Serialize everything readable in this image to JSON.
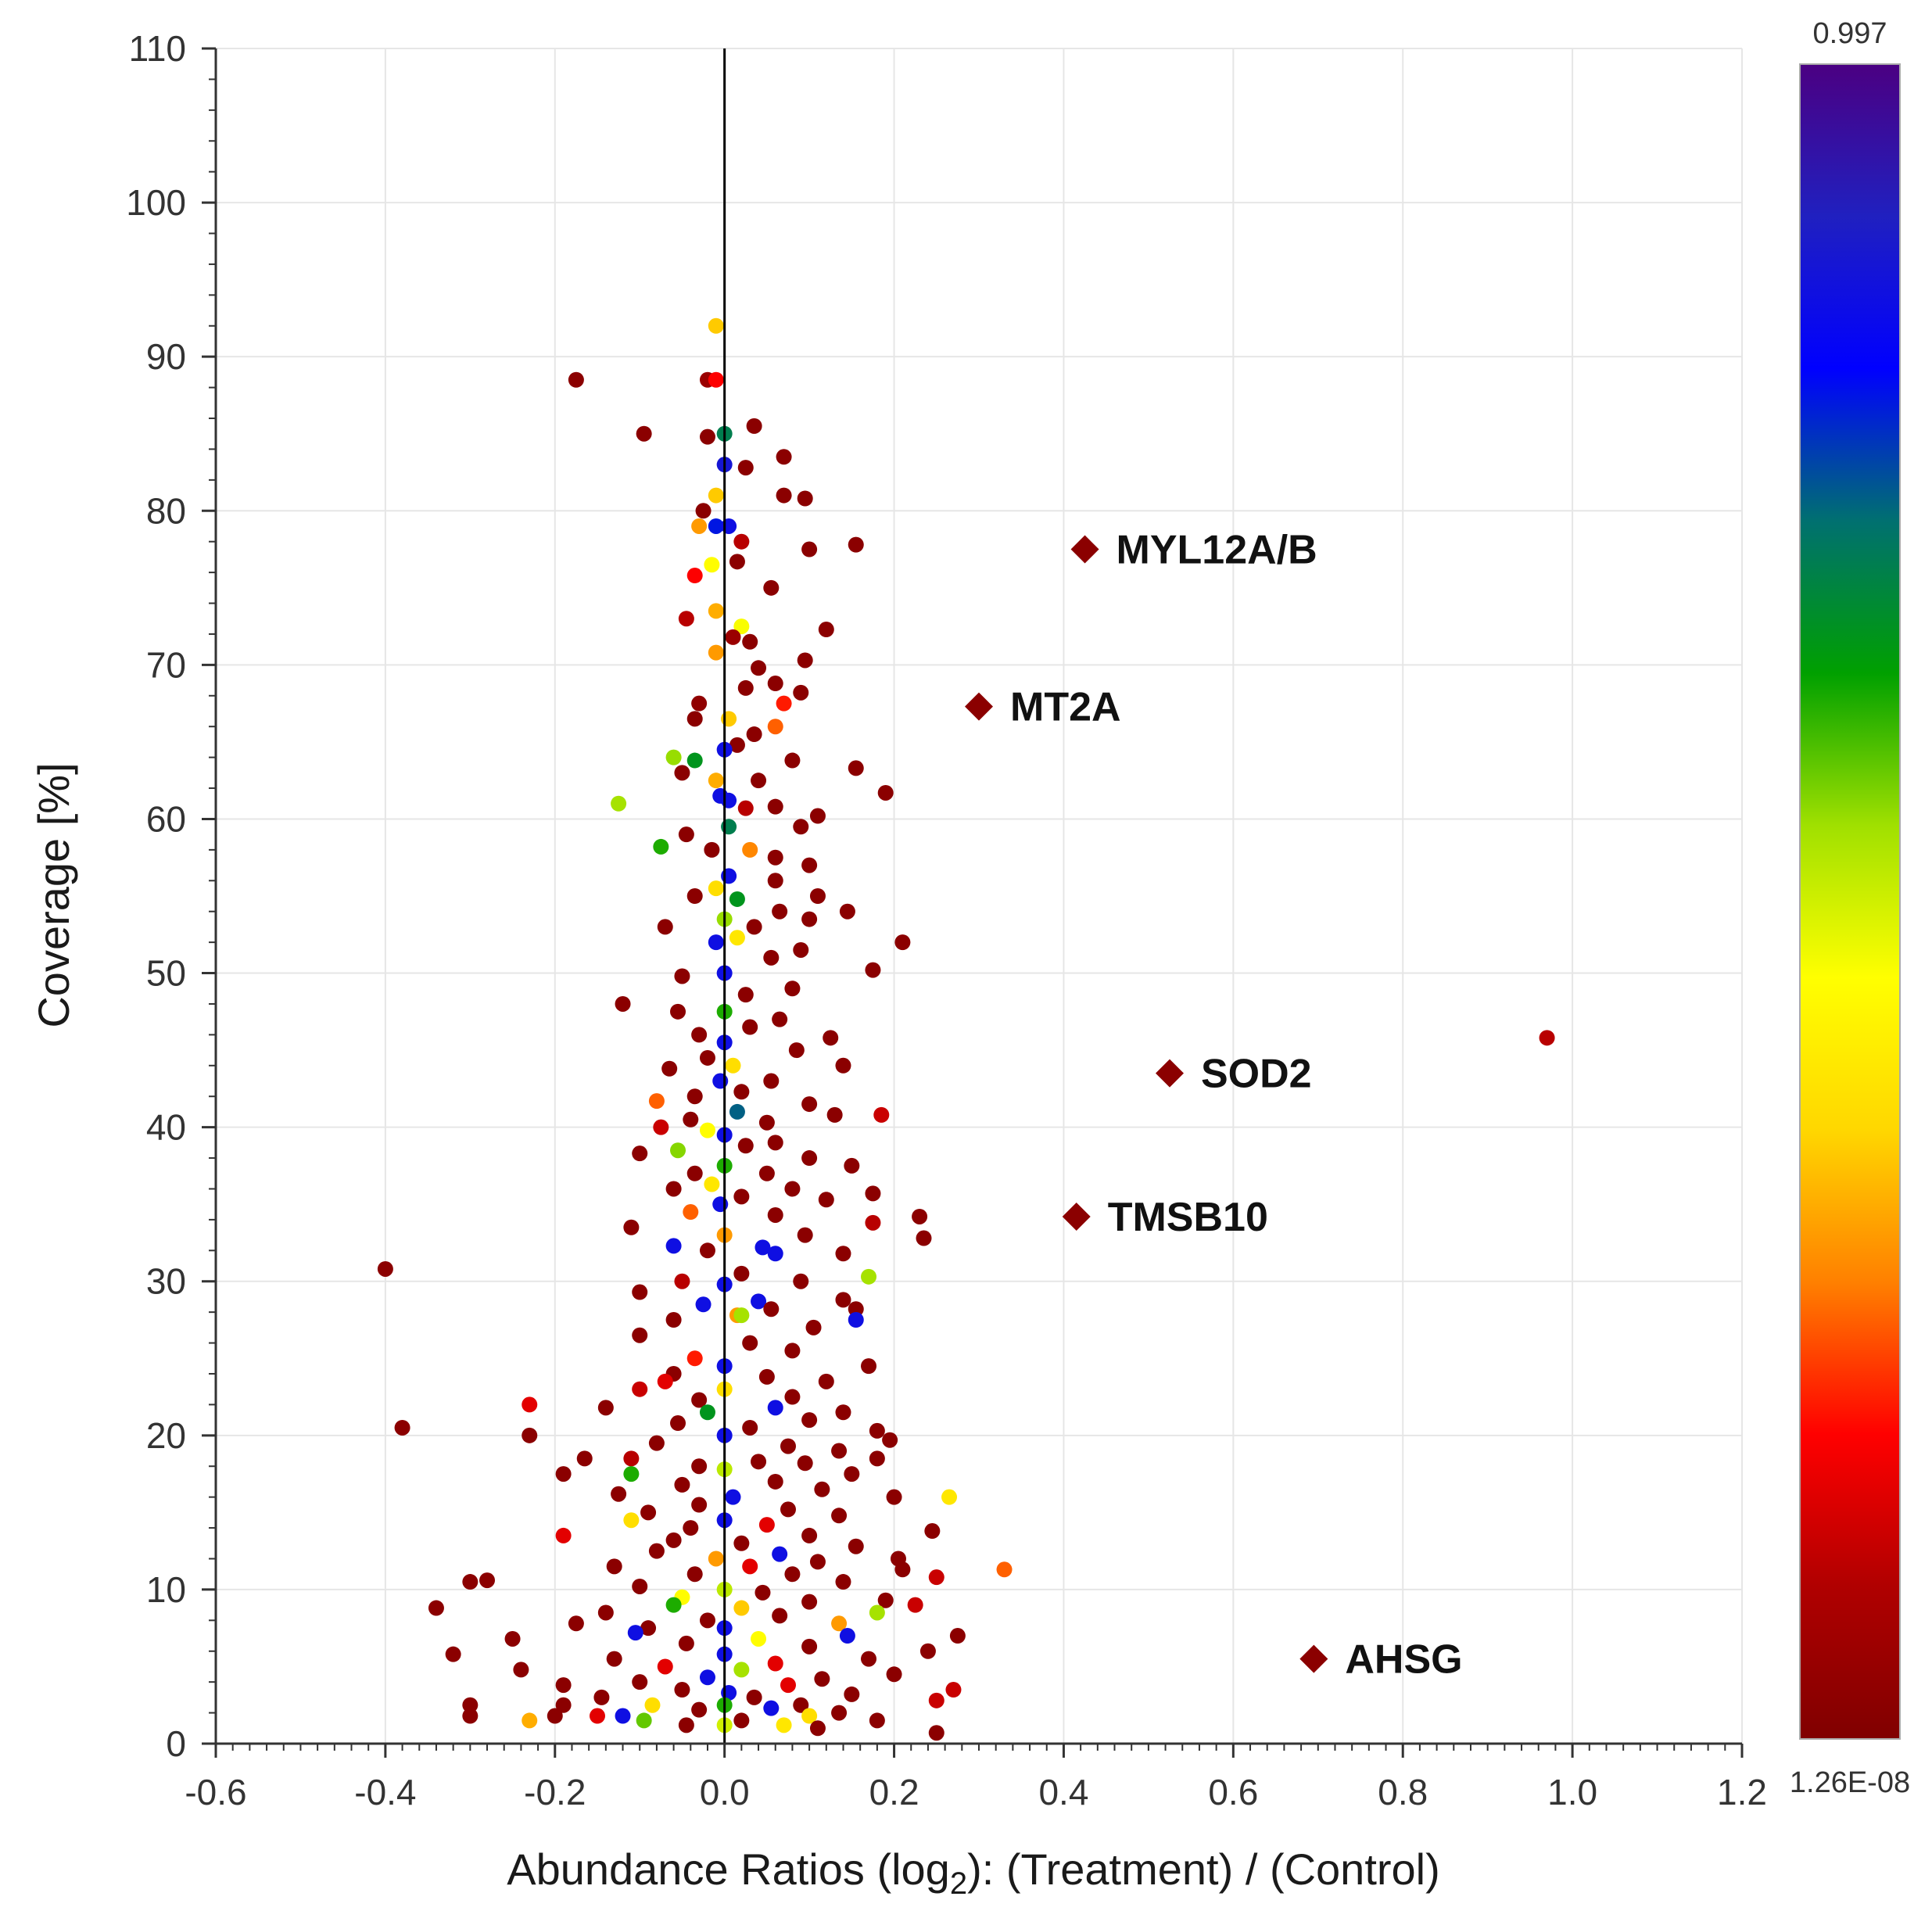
{
  "chart_data": {
    "type": "scatter",
    "title": "",
    "xlabel_main": "Abundance Ratios (log",
    "xlabel_sub": "2",
    "xlabel_tail": "): (Treatment) / (Control)",
    "ylabel": "Coverage [%]",
    "xlim": [
      -0.6,
      1.2
    ],
    "ylim": [
      0,
      110
    ],
    "xticks": [
      "-0.6",
      "-0.4",
      "-0.2",
      "0.0",
      "0.2",
      "0.4",
      "0.6",
      "0.8",
      "1.0",
      "1.2"
    ],
    "yticks": [
      "0",
      "10",
      "20",
      "30",
      "40",
      "50",
      "60",
      "70",
      "80",
      "90",
      "100",
      "110"
    ],
    "grid": true,
    "reference_line_x": 0.0,
    "colorbar": {
      "max_label": "0.997",
      "min_label": "1.26E-08",
      "colors": [
        "#800000",
        "#b00000",
        "#ff0000",
        "#ff8000",
        "#ffd700",
        "#ffff00",
        "#a0e000",
        "#00a000",
        "#007070",
        "#0000ff",
        "#2020c0",
        "#4b0082"
      ]
    },
    "highlighted": [
      {
        "label": "MYL12A/B",
        "x": 0.425,
        "y": 77.5
      },
      {
        "label": "MT2A",
        "x": 0.3,
        "y": 67.3
      },
      {
        "label": "SOD2",
        "x": 0.525,
        "y": 43.5
      },
      {
        "label": "TMSB10",
        "x": 0.415,
        "y": 34.2
      },
      {
        "label": "AHSG",
        "x": 0.695,
        "y": 5.5
      }
    ],
    "points": [
      [
        -0.01,
        92.0,
        0.35
      ],
      [
        -0.175,
        88.5,
        0.02
      ],
      [
        -0.02,
        88.5,
        0.05
      ],
      [
        -0.01,
        88.5,
        0.18
      ],
      [
        -0.095,
        85.0,
        0.02
      ],
      [
        -0.02,
        84.8,
        0.02
      ],
      [
        0.0,
        85.0,
        0.7
      ],
      [
        0.035,
        85.5,
        0.02
      ],
      [
        0.0,
        83.0,
        0.88
      ],
      [
        0.025,
        82.8,
        0.02
      ],
      [
        0.07,
        83.5,
        0.02
      ],
      [
        -0.01,
        81.0,
        0.35
      ],
      [
        0.07,
        81.0,
        0.02
      ],
      [
        0.095,
        80.8,
        0.02
      ],
      [
        -0.025,
        80.0,
        0.02
      ],
      [
        -0.01,
        79.0,
        0.8
      ],
      [
        0.005,
        79.0,
        0.86
      ],
      [
        -0.03,
        79.0,
        0.3
      ],
      [
        0.02,
        78.0,
        0.1
      ],
      [
        0.155,
        77.8,
        0.02
      ],
      [
        0.1,
        77.5,
        0.02
      ],
      [
        -0.015,
        76.5,
        0.45
      ],
      [
        0.015,
        76.7,
        0.02
      ],
      [
        -0.035,
        75.8,
        0.18
      ],
      [
        0.055,
        75.0,
        0.02
      ],
      [
        -0.01,
        73.5,
        0.32
      ],
      [
        0.02,
        72.5,
        0.46
      ],
      [
        -0.045,
        73.0,
        0.1
      ],
      [
        0.12,
        72.3,
        0.02
      ],
      [
        0.01,
        71.8,
        0.05
      ],
      [
        0.03,
        71.5,
        0.02
      ],
      [
        0.095,
        70.3,
        0.02
      ],
      [
        -0.01,
        70.8,
        0.3
      ],
      [
        0.04,
        69.8,
        0.02
      ],
      [
        0.06,
        68.8,
        0.02
      ],
      [
        0.07,
        67.5,
        0.2
      ],
      [
        0.025,
        68.5,
        0.02
      ],
      [
        -0.03,
        67.5,
        0.03
      ],
      [
        0.09,
        68.2,
        0.02
      ],
      [
        0.005,
        66.5,
        0.35
      ],
      [
        -0.035,
        66.5,
        0.02
      ],
      [
        0.06,
        66.0,
        0.25
      ],
      [
        0.035,
        65.5,
        0.02
      ],
      [
        0.015,
        64.8,
        0.02
      ],
      [
        -0.06,
        64.0,
        0.55
      ],
      [
        -0.035,
        63.8,
        0.66
      ],
      [
        0.0,
        64.5,
        0.86
      ],
      [
        0.08,
        63.8,
        0.02
      ],
      [
        0.155,
        63.3,
        0.02
      ],
      [
        -0.05,
        63.0,
        0.02
      ],
      [
        0.04,
        62.5,
        0.02
      ],
      [
        -0.01,
        62.5,
        0.32
      ],
      [
        0.19,
        61.7,
        0.02
      ],
      [
        -0.005,
        61.5,
        0.86
      ],
      [
        0.005,
        61.2,
        0.86
      ],
      [
        -0.125,
        61.0,
        0.54
      ],
      [
        0.06,
        60.8,
        0.02
      ],
      [
        0.025,
        60.7,
        0.1
      ],
      [
        0.11,
        60.2,
        0.02
      ],
      [
        0.09,
        59.5,
        0.02
      ],
      [
        0.005,
        59.5,
        0.7
      ],
      [
        -0.045,
        59.0,
        0.02
      ],
      [
        -0.075,
        58.2,
        0.62
      ],
      [
        0.03,
        58.0,
        0.28
      ],
      [
        -0.015,
        58.0,
        0.02
      ],
      [
        0.06,
        57.5,
        0.02
      ],
      [
        0.1,
        57.0,
        0.02
      ],
      [
        0.005,
        56.3,
        0.86
      ],
      [
        0.06,
        56.0,
        0.02
      ],
      [
        -0.01,
        55.5,
        0.38
      ],
      [
        0.11,
        55.0,
        0.02
      ],
      [
        -0.035,
        55.0,
        0.02
      ],
      [
        0.015,
        54.8,
        0.66
      ],
      [
        0.065,
        54.0,
        0.02
      ],
      [
        0.145,
        54.0,
        0.02
      ],
      [
        0.0,
        53.5,
        0.55
      ],
      [
        -0.07,
        53.0,
        0.02
      ],
      [
        0.1,
        53.5,
        0.02
      ],
      [
        0.035,
        53.0,
        0.02
      ],
      [
        0.015,
        52.3,
        0.4
      ],
      [
        0.21,
        52.0,
        0.02
      ],
      [
        0.09,
        51.5,
        0.02
      ],
      [
        -0.01,
        52.0,
        0.86
      ],
      [
        0.055,
        51.0,
        0.02
      ],
      [
        0.175,
        50.2,
        0.02
      ],
      [
        0.0,
        50.0,
        0.86
      ],
      [
        -0.05,
        49.8,
        0.02
      ],
      [
        0.08,
        49.0,
        0.02
      ],
      [
        0.025,
        48.6,
        0.02
      ],
      [
        -0.12,
        48.0,
        0.02
      ],
      [
        0.0,
        47.5,
        0.62
      ],
      [
        -0.055,
        47.5,
        0.02
      ],
      [
        0.065,
        47.0,
        0.02
      ],
      [
        0.03,
        46.5,
        0.02
      ],
      [
        -0.03,
        46.0,
        0.02
      ],
      [
        0.125,
        45.8,
        0.02
      ],
      [
        0.0,
        45.5,
        0.86
      ],
      [
        0.085,
        45.0,
        0.02
      ],
      [
        -0.02,
        44.5,
        0.02
      ],
      [
        0.01,
        44.0,
        0.38
      ],
      [
        0.14,
        44.0,
        0.02
      ],
      [
        -0.065,
        43.8,
        0.02
      ],
      [
        0.055,
        43.0,
        0.02
      ],
      [
        -0.005,
        43.0,
        0.86
      ],
      [
        -0.035,
        42.0,
        0.02
      ],
      [
        0.02,
        42.3,
        0.02
      ],
      [
        -0.08,
        41.7,
        0.25
      ],
      [
        0.1,
        41.5,
        0.02
      ],
      [
        0.015,
        41.0,
        0.74
      ],
      [
        -0.04,
        40.5,
        0.02
      ],
      [
        0.05,
        40.3,
        0.02
      ],
      [
        0.185,
        40.8,
        0.12
      ],
      [
        0.13,
        40.8,
        0.02
      ],
      [
        -0.075,
        40.0,
        0.12
      ],
      [
        -0.02,
        39.8,
        0.45
      ],
      [
        0.0,
        39.5,
        0.86
      ],
      [
        0.06,
        39.0,
        0.02
      ],
      [
        0.025,
        38.8,
        0.02
      ],
      [
        -0.055,
        38.5,
        0.56
      ],
      [
        -0.1,
        38.3,
        0.02
      ],
      [
        0.1,
        38.0,
        0.02
      ],
      [
        0.15,
        37.5,
        0.02
      ],
      [
        0.0,
        37.5,
        0.62
      ],
      [
        -0.035,
        37.0,
        0.02
      ],
      [
        0.05,
        37.0,
        0.02
      ],
      [
        -0.015,
        36.3,
        0.4
      ],
      [
        0.08,
        36.0,
        0.02
      ],
      [
        -0.06,
        36.0,
        0.02
      ],
      [
        0.175,
        35.7,
        0.02
      ],
      [
        0.02,
        35.5,
        0.02
      ],
      [
        0.12,
        35.3,
        0.02
      ],
      [
        -0.005,
        35.0,
        0.86
      ],
      [
        -0.04,
        34.5,
        0.25
      ],
      [
        0.06,
        34.3,
        0.02
      ],
      [
        0.23,
        34.2,
        0.02
      ],
      [
        0.175,
        33.8,
        0.1
      ],
      [
        -0.11,
        33.5,
        0.02
      ],
      [
        0.0,
        33.0,
        0.3
      ],
      [
        0.095,
        33.0,
        0.02
      ],
      [
        0.235,
        32.8,
        0.02
      ],
      [
        -0.06,
        32.3,
        0.86
      ],
      [
        0.045,
        32.2,
        0.86
      ],
      [
        0.06,
        31.8,
        0.86
      ],
      [
        -0.02,
        32.0,
        0.02
      ],
      [
        0.14,
        31.8,
        0.02
      ],
      [
        -0.4,
        30.8,
        0.02
      ],
      [
        0.17,
        30.3,
        0.54
      ],
      [
        0.02,
        30.5,
        0.02
      ],
      [
        -0.05,
        30.0,
        0.1
      ],
      [
        0.09,
        30.0,
        0.02
      ],
      [
        0.0,
        29.8,
        0.86
      ],
      [
        -0.1,
        29.3,
        0.02
      ],
      [
        0.14,
        28.8,
        0.02
      ],
      [
        -0.025,
        28.5,
        0.86
      ],
      [
        0.04,
        28.7,
        0.86
      ],
      [
        0.055,
        28.2,
        0.02
      ],
      [
        0.015,
        27.8,
        0.3
      ],
      [
        0.02,
        27.8,
        0.54
      ],
      [
        0.155,
        28.2,
        0.02
      ],
      [
        0.155,
        27.5,
        0.86
      ],
      [
        -0.06,
        27.5,
        0.02
      ],
      [
        0.105,
        27.0,
        0.02
      ],
      [
        -0.1,
        26.5,
        0.02
      ],
      [
        0.03,
        26.0,
        0.02
      ],
      [
        0.08,
        25.5,
        0.02
      ],
      [
        -0.035,
        25.0,
        0.2
      ],
      [
        0.0,
        24.5,
        0.86
      ],
      [
        0.17,
        24.5,
        0.02
      ],
      [
        -0.06,
        24.0,
        0.02
      ],
      [
        0.05,
        23.8,
        0.02
      ],
      [
        0.12,
        23.5,
        0.02
      ],
      [
        -0.07,
        23.5,
        0.15
      ],
      [
        -0.1,
        23.0,
        0.12
      ],
      [
        0.0,
        23.0,
        0.38
      ],
      [
        0.08,
        22.5,
        0.02
      ],
      [
        -0.03,
        22.3,
        0.02
      ],
      [
        -0.23,
        22.0,
        0.15
      ],
      [
        -0.14,
        21.8,
        0.02
      ],
      [
        0.06,
        21.8,
        0.86
      ],
      [
        -0.02,
        21.5,
        0.66
      ],
      [
        0.14,
        21.5,
        0.02
      ],
      [
        0.1,
        21.0,
        0.02
      ],
      [
        -0.055,
        20.8,
        0.02
      ],
      [
        0.03,
        20.5,
        0.02
      ],
      [
        -0.38,
        20.5,
        0.02
      ],
      [
        0.18,
        20.3,
        0.02
      ],
      [
        0.0,
        20.0,
        0.86
      ],
      [
        -0.23,
        20.0,
        0.02
      ],
      [
        0.195,
        19.7,
        0.02
      ],
      [
        -0.08,
        19.5,
        0.02
      ],
      [
        0.075,
        19.3,
        0.02
      ],
      [
        0.135,
        19.0,
        0.02
      ],
      [
        -0.165,
        18.5,
        0.02
      ],
      [
        -0.11,
        18.5,
        0.1
      ],
      [
        0.04,
        18.3,
        0.02
      ],
      [
        0.095,
        18.2,
        0.02
      ],
      [
        0.18,
        18.5,
        0.02
      ],
      [
        -0.03,
        18.0,
        0.02
      ],
      [
        0.0,
        17.8,
        0.52
      ],
      [
        -0.19,
        17.5,
        0.02
      ],
      [
        -0.11,
        17.5,
        0.62
      ],
      [
        0.15,
        17.5,
        0.02
      ],
      [
        0.06,
        17.0,
        0.02
      ],
      [
        -0.05,
        16.8,
        0.02
      ],
      [
        0.115,
        16.5,
        0.02
      ],
      [
        -0.125,
        16.2,
        0.02
      ],
      [
        0.265,
        16.0,
        0.4
      ],
      [
        0.01,
        16.0,
        0.86
      ],
      [
        0.2,
        16.0,
        0.02
      ],
      [
        -0.03,
        15.5,
        0.02
      ],
      [
        0.075,
        15.2,
        0.02
      ],
      [
        -0.09,
        15.0,
        0.02
      ],
      [
        0.135,
        14.8,
        0.02
      ],
      [
        0.0,
        14.5,
        0.86
      ],
      [
        -0.11,
        14.5,
        0.38
      ],
      [
        0.05,
        14.2,
        0.15
      ],
      [
        -0.04,
        14.0,
        0.02
      ],
      [
        0.245,
        13.8,
        0.02
      ],
      [
        0.1,
        13.5,
        0.02
      ],
      [
        -0.19,
        13.5,
        0.15
      ],
      [
        -0.06,
        13.2,
        0.02
      ],
      [
        0.02,
        13.0,
        0.02
      ],
      [
        0.155,
        12.8,
        0.02
      ],
      [
        -0.08,
        12.5,
        0.02
      ],
      [
        0.065,
        12.3,
        0.86
      ],
      [
        0.205,
        12.0,
        0.02
      ],
      [
        -0.01,
        12.0,
        0.3
      ],
      [
        0.11,
        11.8,
        0.02
      ],
      [
        -0.13,
        11.5,
        0.02
      ],
      [
        0.03,
        11.5,
        0.15
      ],
      [
        0.33,
        11.3,
        0.25
      ],
      [
        0.21,
        11.3,
        0.02
      ],
      [
        -0.035,
        11.0,
        0.02
      ],
      [
        0.08,
        11.0,
        0.02
      ],
      [
        0.25,
        10.8,
        0.12
      ],
      [
        -0.28,
        10.6,
        0.02
      ],
      [
        -0.3,
        10.5,
        0.02
      ],
      [
        0.14,
        10.5,
        0.02
      ],
      [
        -0.1,
        10.2,
        0.02
      ],
      [
        0.0,
        10.0,
        0.52
      ],
      [
        0.045,
        9.8,
        0.02
      ],
      [
        -0.05,
        9.5,
        0.45
      ],
      [
        0.19,
        9.3,
        0.02
      ],
      [
        0.1,
        9.2,
        0.02
      ],
      [
        -0.06,
        9.0,
        0.62
      ],
      [
        0.225,
        9.0,
        0.12
      ],
      [
        -0.34,
        8.8,
        0.02
      ],
      [
        0.02,
        8.8,
        0.35
      ],
      [
        -0.14,
        8.5,
        0.02
      ],
      [
        0.18,
        8.5,
        0.54
      ],
      [
        0.065,
        8.3,
        0.02
      ],
      [
        -0.02,
        8.0,
        0.02
      ],
      [
        0.135,
        7.8,
        0.3
      ],
      [
        -0.175,
        7.8,
        0.02
      ],
      [
        -0.09,
        7.5,
        0.02
      ],
      [
        0.0,
        7.5,
        0.86
      ],
      [
        -0.105,
        7.2,
        0.86
      ],
      [
        0.145,
        7.0,
        0.86
      ],
      [
        0.275,
        7.0,
        0.02
      ],
      [
        -0.25,
        6.8,
        0.02
      ],
      [
        0.04,
        6.8,
        0.45
      ],
      [
        -0.045,
        6.5,
        0.02
      ],
      [
        0.1,
        6.3,
        0.02
      ],
      [
        0.24,
        6.0,
        0.02
      ],
      [
        -0.32,
        5.8,
        0.02
      ],
      [
        0.0,
        5.8,
        0.86
      ],
      [
        -0.13,
        5.5,
        0.02
      ],
      [
        0.17,
        5.5,
        0.02
      ],
      [
        0.06,
        5.2,
        0.15
      ],
      [
        -0.07,
        5.0,
        0.15
      ],
      [
        -0.24,
        4.8,
        0.02
      ],
      [
        0.02,
        4.8,
        0.54
      ],
      [
        0.2,
        4.5,
        0.02
      ],
      [
        -0.02,
        4.3,
        0.86
      ],
      [
        0.115,
        4.2,
        0.02
      ],
      [
        -0.1,
        4.0,
        0.02
      ],
      [
        0.075,
        3.8,
        0.15
      ],
      [
        -0.19,
        3.8,
        0.02
      ],
      [
        0.27,
        3.5,
        0.12
      ],
      [
        -0.05,
        3.5,
        0.02
      ],
      [
        0.005,
        3.3,
        0.86
      ],
      [
        0.15,
        3.2,
        0.02
      ],
      [
        -0.145,
        3.0,
        0.02
      ],
      [
        0.035,
        3.0,
        0.02
      ],
      [
        -0.3,
        2.5,
        0.02
      ],
      [
        0.25,
        2.8,
        0.12
      ],
      [
        0.09,
        2.5,
        0.02
      ],
      [
        -0.085,
        2.5,
        0.38
      ],
      [
        -0.19,
        2.5,
        0.02
      ],
      [
        0.0,
        2.5,
        0.62
      ],
      [
        0.055,
        2.3,
        0.86
      ],
      [
        -0.03,
        2.2,
        0.02
      ],
      [
        0.135,
        2.0,
        0.02
      ],
      [
        -0.3,
        1.8,
        0.02
      ],
      [
        -0.15,
        1.8,
        0.15
      ],
      [
        -0.2,
        1.8,
        0.02
      ],
      [
        -0.12,
        1.8,
        0.86
      ],
      [
        0.1,
        1.8,
        0.38
      ],
      [
        0.02,
        1.5,
        0.02
      ],
      [
        0.18,
        1.5,
        0.02
      ],
      [
        -0.23,
        1.5,
        0.32
      ],
      [
        -0.095,
        1.5,
        0.58
      ],
      [
        0.07,
        1.2,
        0.4
      ],
      [
        -0.045,
        1.2,
        0.02
      ],
      [
        0.0,
        1.2,
        0.5
      ],
      [
        0.25,
        0.7,
        0.02
      ],
      [
        0.97,
        45.8,
        0.1
      ],
      [
        0.11,
        1.0,
        0.02
      ]
    ]
  }
}
